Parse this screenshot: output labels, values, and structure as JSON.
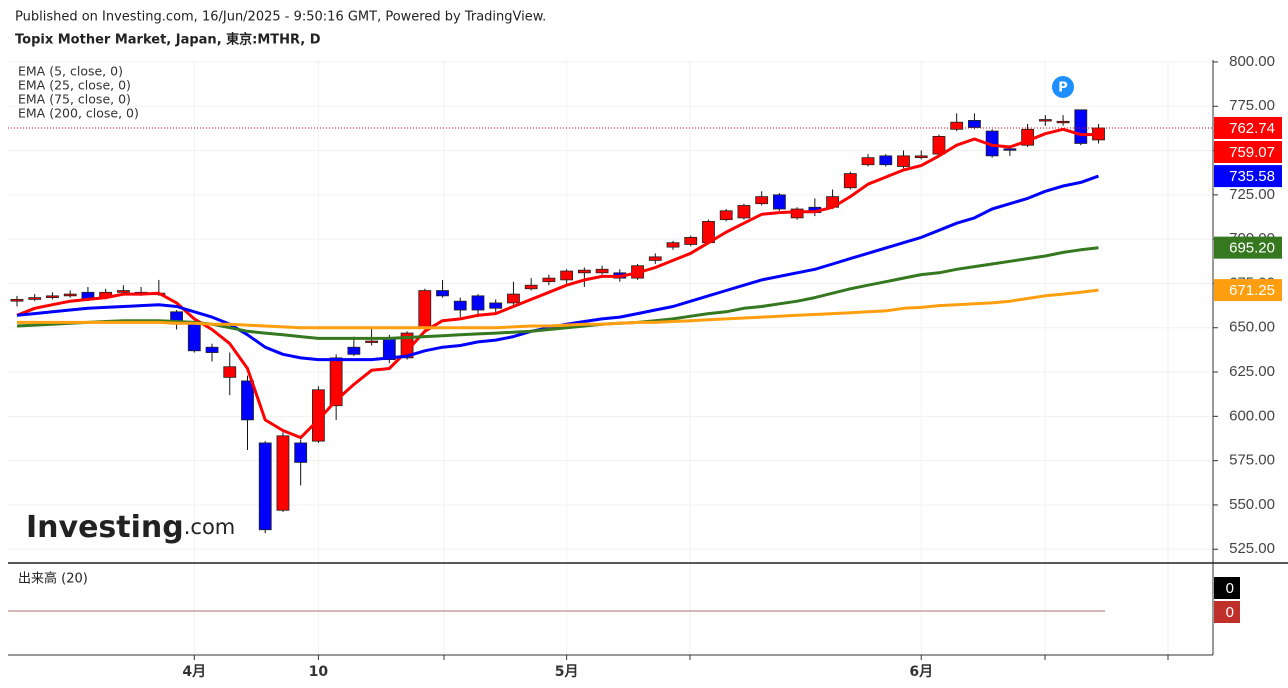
{
  "chart_data": {
    "type": "candlestick",
    "source": "Published on Investing.com, 16/Jun/2025 - 9:50:16 GMT, Powered by TradingView.",
    "title": "Topix Mother Market, Japan, 東京:MTHR, D",
    "categories": [
      null,
      null,
      null,
      null,
      null,
      null,
      null,
      null,
      null,
      null,
      "4月",
      null,
      null,
      null,
      null,
      null,
      null,
      "10",
      null,
      null,
      null,
      null,
      null,
      null,
      null,
      null,
      null,
      null,
      null,
      null,
      null,
      "5月",
      null,
      null,
      null,
      null,
      null,
      null,
      null,
      null,
      null,
      null,
      null,
      null,
      null,
      null,
      null,
      null,
      null,
      null,
      null,
      "6月",
      null,
      null,
      null,
      null,
      null,
      null,
      null,
      null,
      null,
      null
    ],
    "open": [
      665,
      666,
      667,
      668,
      670,
      667,
      670,
      670,
      669,
      659,
      653,
      639,
      622,
      620,
      585,
      547,
      585,
      586,
      606,
      639,
      642,
      644,
      633,
      650,
      671,
      665,
      668,
      664,
      664,
      672,
      676,
      677,
      681,
      681,
      681,
      678,
      688,
      695.5,
      697,
      698,
      711,
      712,
      720,
      725,
      712,
      718,
      718,
      729,
      742,
      747,
      741,
      746,
      748,
      762,
      767,
      761,
      751,
      753,
      767,
      766,
      773,
      756
    ],
    "high": [
      668,
      669,
      670,
      671,
      673,
      672,
      674,
      673,
      677,
      660,
      654,
      641,
      636,
      623,
      586,
      591,
      587,
      617,
      635,
      645,
      650,
      646,
      648,
      672,
      677,
      667,
      669,
      666,
      676,
      678,
      680,
      683,
      684,
      685,
      683,
      686,
      692,
      699,
      702,
      711,
      717,
      720,
      727,
      726,
      718,
      723,
      728,
      738,
      748,
      748,
      750,
      750,
      759,
      771,
      771,
      762,
      753,
      765,
      770,
      770,
      773,
      765
    ],
    "low": [
      662,
      665,
      666,
      667,
      665,
      666,
      669,
      668,
      668,
      649,
      636,
      631,
      612,
      581,
      534,
      546,
      561,
      585,
      598,
      634,
      640,
      630,
      632,
      649,
      667,
      656,
      656,
      658,
      663,
      671,
      674,
      675,
      673,
      680,
      676,
      677,
      686,
      694,
      696,
      697,
      710,
      711,
      719,
      716,
      711,
      713,
      717,
      728,
      741,
      741,
      740,
      745,
      747,
      761,
      762,
      746,
      747,
      752,
      764,
      764,
      753,
      754
    ],
    "close": [
      666,
      667,
      668,
      669,
      666,
      670,
      671,
      669,
      669.5,
      652,
      637,
      636,
      628,
      598,
      536,
      589,
      574,
      615,
      633,
      635,
      642.5,
      632,
      647,
      671,
      668,
      660,
      660,
      661,
      669,
      674,
      678,
      682,
      682.5,
      683,
      678,
      685,
      690,
      698,
      701,
      710,
      716,
      719,
      724,
      717,
      717,
      715,
      724,
      737,
      746,
      742,
      747,
      747,
      758,
      766,
      763,
      747,
      750.5,
      762,
      767.5,
      766.5,
      754,
      762.74
    ],
    "up_color": "#ff0000",
    "down_color": "#0000ff",
    "last_price_line": true,
    "series": [
      {
        "name": "EMA (5, close, 0)",
        "color": "#ff0000",
        "values": [
          657,
          661,
          663,
          665,
          666,
          667,
          669,
          669,
          669.5,
          664,
          655,
          649,
          641,
          627,
          598,
          592,
          588,
          598,
          609,
          618,
          626,
          627,
          637,
          648,
          654,
          655,
          657,
          658,
          662,
          666,
          670,
          674,
          677,
          679,
          679,
          681,
          684,
          688,
          692,
          698,
          704,
          709,
          714,
          715,
          715.5,
          715.5,
          718,
          724,
          731,
          735,
          739,
          741.5,
          747,
          753,
          756.5,
          753,
          752,
          755.5,
          759.5,
          762,
          759,
          759.07
        ]
      },
      {
        "name": "EMA (25, close, 0)",
        "color": "#0000ff",
        "values": [
          657,
          658,
          659,
          660,
          661,
          661.5,
          662,
          662.5,
          663,
          662,
          659,
          656,
          652,
          646,
          639,
          635,
          633,
          632,
          632,
          632,
          632,
          633,
          634,
          637,
          639,
          640,
          642,
          643,
          645,
          648,
          650,
          652,
          653.5,
          655,
          656,
          658,
          660,
          662,
          665,
          668,
          671,
          674,
          677,
          679,
          681,
          683,
          686,
          689,
          692,
          695,
          698,
          701,
          705,
          709,
          712,
          717,
          720,
          723,
          727,
          730,
          732,
          735.58
        ]
      },
      {
        "name": "EMA (75, close, 0)",
        "color": "#35781f",
        "values": [
          651,
          651.5,
          652,
          652.5,
          653,
          653.5,
          654,
          654,
          654,
          653.5,
          653,
          652,
          650,
          648,
          647,
          646,
          645,
          644,
          644,
          644,
          644,
          644,
          644.5,
          645,
          645.5,
          646,
          646.5,
          647,
          647.5,
          648,
          649,
          650,
          651,
          652,
          652.5,
          653,
          654,
          655,
          656.5,
          658,
          659,
          661,
          662,
          663.5,
          665,
          667,
          669.5,
          672,
          674,
          676,
          678,
          680,
          681,
          683,
          684.5,
          686,
          687.5,
          689,
          690.5,
          692.5,
          694,
          695.2
        ],
        "value_labels": [
          null,
          null,
          null,
          null,
          null,
          null,
          null,
          null,
          null,
          null,
          null,
          null,
          null,
          null,
          null,
          null,
          null,
          null,
          null,
          null,
          null,
          null,
          null,
          null,
          null,
          null,
          null,
          null,
          null,
          null,
          null,
          null,
          null,
          null,
          null,
          null,
          null,
          null,
          null,
          null,
          null,
          null,
          null,
          null,
          null,
          null,
          null,
          null,
          null,
          null,
          null,
          null,
          null,
          null,
          null,
          null,
          null,
          null,
          null,
          null,
          null,
          "695.20"
        ]
      },
      {
        "name": "EMA (200, close, 0)",
        "color": "#ff9f10",
        "values": [
          653,
          653,
          653,
          653,
          653,
          653,
          653,
          653,
          653,
          652.5,
          652.5,
          652,
          652,
          651.5,
          651,
          650.5,
          650,
          650,
          650,
          650,
          650,
          650,
          650,
          650,
          650,
          650,
          650,
          650,
          650.5,
          651,
          651,
          651.5,
          652,
          652,
          652.5,
          653,
          653,
          653.5,
          654,
          654.5,
          655,
          655.5,
          656,
          656.5,
          657,
          657.5,
          658,
          658.5,
          659,
          659.5,
          661,
          661.5,
          662.5,
          663,
          663.5,
          664,
          665,
          666.5,
          668,
          669,
          670,
          671.25
        ]
      }
    ],
    "ylim": [
      517.8,
      801.1
    ],
    "yticks": [
      {
        "value": 525,
        "label": "525.00"
      },
      {
        "value": 550,
        "label": "550.00"
      },
      {
        "value": 575,
        "label": "575.00"
      },
      {
        "value": 600,
        "label": "600.00"
      },
      {
        "value": 625,
        "label": "625.00"
      },
      {
        "value": 650,
        "label": "650.00"
      },
      {
        "value": 675,
        "label": "675.00"
      },
      {
        "value": 700,
        "label": "700.00"
      },
      {
        "value": 725,
        "label": "725.00"
      },
      {
        "value": 750,
        "label": "750.00"
      },
      {
        "value": 775,
        "label": "775.00"
      },
      {
        "value": 800,
        "label": "800.00"
      }
    ],
    "grid": true,
    "volume_panel": {
      "title": "出来高 (20)",
      "last_values": [
        0,
        0
      ],
      "colors": [
        "#000000",
        "#c0302b"
      ]
    },
    "badge": "P",
    "logo": {
      "brand": "Investing",
      "suffix": ".com"
    }
  }
}
